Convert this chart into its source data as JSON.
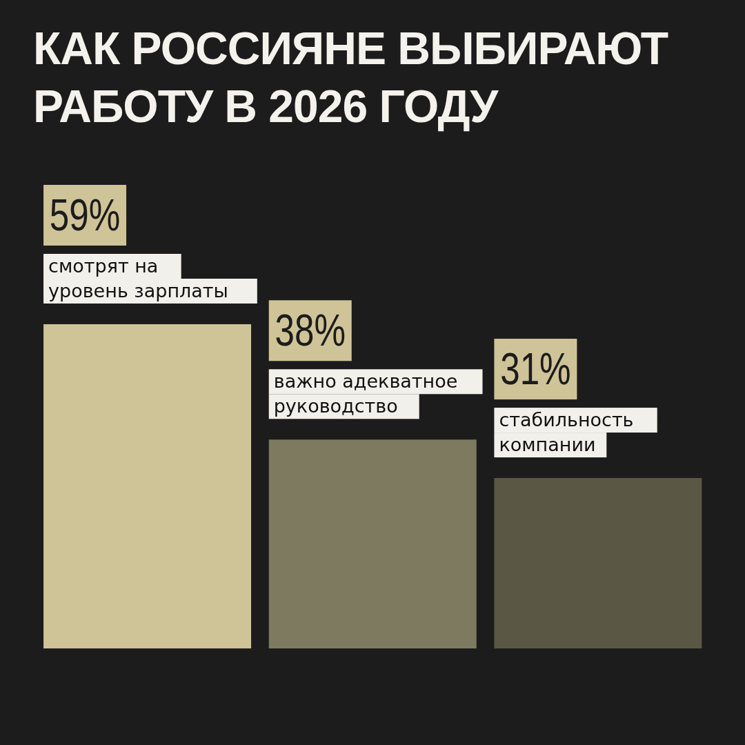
{
  "chart_data": {
    "type": "bar",
    "title": "КАК РОССИЯНЕ ВЫБИРАЮТ РАБОТУ В 2026 ГОДУ",
    "categories": [
      "смотрят на уровень зарплаты",
      "важно адекватное руководство",
      "стабильность компании"
    ],
    "values": [
      59,
      38,
      31
    ],
    "value_labels": [
      "59%",
      "38%",
      "31%"
    ],
    "colors": [
      "#cfc398",
      "#7d7a5f",
      "#5a5744"
    ]
  }
}
